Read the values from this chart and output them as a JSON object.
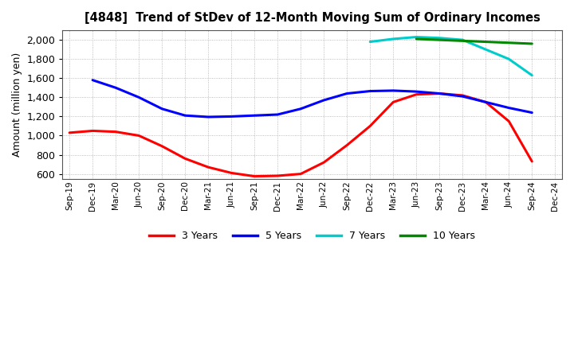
{
  "title": "[4848]  Trend of StDev of 12-Month Moving Sum of Ordinary Incomes",
  "ylabel": "Amount (million yen)",
  "background_color": "#ffffff",
  "grid_color": "#aaaaaa",
  "ylim": [
    550,
    2100
  ],
  "yticks": [
    600,
    800,
    1000,
    1200,
    1400,
    1600,
    1800,
    2000
  ],
  "series": {
    "3 Years": {
      "color": "#ff0000",
      "indices": [
        0,
        1,
        2,
        3,
        4,
        5,
        6,
        7,
        8,
        9,
        10,
        11,
        12,
        13,
        14,
        15,
        16,
        17,
        18,
        19,
        20
      ],
      "values": [
        1030,
        1050,
        1040,
        1000,
        890,
        760,
        670,
        610,
        575,
        580,
        600,
        720,
        900,
        1100,
        1350,
        1430,
        1440,
        1420,
        1350,
        1150,
        730
      ]
    },
    "5 Years": {
      "color": "#0000ff",
      "indices": [
        1,
        2,
        3,
        4,
        5,
        6,
        7,
        8,
        9,
        10,
        11,
        12,
        13,
        14,
        15,
        16,
        17,
        18,
        19,
        20
      ],
      "values": [
        1580,
        1500,
        1400,
        1280,
        1210,
        1195,
        1200,
        1210,
        1220,
        1280,
        1370,
        1440,
        1465,
        1470,
        1460,
        1440,
        1410,
        1350,
        1290,
        1240
      ]
    },
    "7 Years": {
      "color": "#00cccc",
      "indices": [
        13,
        14,
        15,
        16,
        17,
        18,
        19,
        20
      ],
      "values": [
        1980,
        2010,
        2030,
        2020,
        2000,
        1900,
        1800,
        1630
      ]
    },
    "10 Years": {
      "color": "#008800",
      "indices": [
        15,
        16,
        17,
        18,
        19,
        20
      ],
      "values": [
        2010,
        2000,
        1990,
        1980,
        1970,
        1960
      ]
    }
  },
  "xtick_labels": [
    "Sep-19",
    "Dec-19",
    "Mar-20",
    "Jun-20",
    "Sep-20",
    "Dec-20",
    "Mar-21",
    "Jun-21",
    "Sep-21",
    "Dec-21",
    "Mar-22",
    "Jun-22",
    "Sep-22",
    "Dec-22",
    "Mar-23",
    "Jun-23",
    "Sep-23",
    "Dec-23",
    "Mar-24",
    "Jun-24",
    "Sep-24",
    "Dec-24"
  ],
  "legend_labels": [
    "3 Years",
    "5 Years",
    "7 Years",
    "10 Years"
  ],
  "legend_colors": [
    "#ff0000",
    "#0000ff",
    "#00cccc",
    "#008800"
  ]
}
